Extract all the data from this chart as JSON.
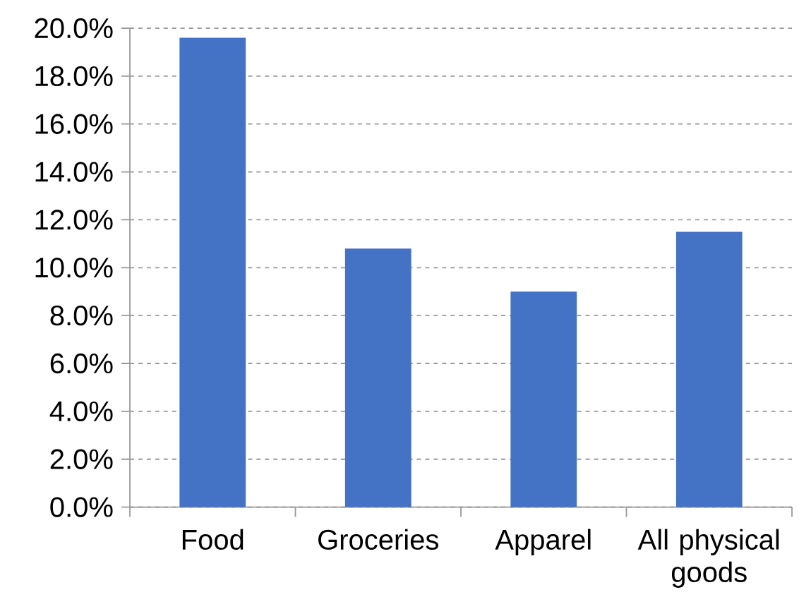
{
  "chart_data": {
    "type": "bar",
    "categories": [
      "Food",
      "Groceries",
      "Apparel",
      "All physical goods"
    ],
    "values": [
      19.6,
      10.8,
      9.0,
      11.5
    ],
    "color": "#4472c4",
    "ylim": [
      0,
      20
    ],
    "yticks": [
      {
        "value": 0,
        "label": "0.0%"
      },
      {
        "value": 2,
        "label": "2.0%"
      },
      {
        "value": 4,
        "label": "4.0%"
      },
      {
        "value": 6,
        "label": "6.0%"
      },
      {
        "value": 8,
        "label": "8.0%"
      },
      {
        "value": 10,
        "label": "10.0%"
      },
      {
        "value": 12,
        "label": "12.0%"
      },
      {
        "value": 14,
        "label": "14.0%"
      },
      {
        "value": 16,
        "label": "16.0%"
      },
      {
        "value": 18,
        "label": "18.0%"
      },
      {
        "value": 20,
        "label": "20.0%"
      }
    ],
    "grid": "y"
  }
}
